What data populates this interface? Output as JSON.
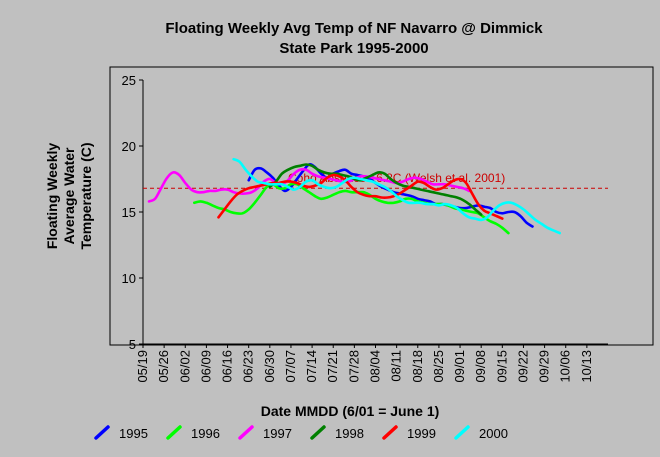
{
  "chart_data": {
    "type": "line",
    "title": [
      "Floating Weekly Avg Temp of NF Navarro @ Dimmick",
      "State Park 1995-2000"
    ],
    "xlabel": "Date MMDD (6/01 = June 1)",
    "ylabel": [
      "Floating Weekly",
      "Average Water",
      "Temperature (C)"
    ],
    "ylim": [
      5,
      25
    ],
    "yticks": [
      5,
      10,
      15,
      20,
      25
    ],
    "xticks": [
      "05/19",
      "05/26",
      "06/02",
      "06/09",
      "06/16",
      "06/23",
      "06/30",
      "07/07",
      "07/14",
      "07/21",
      "07/28",
      "08/04",
      "08/11",
      "08/18",
      "08/25",
      "09/01",
      "09/08",
      "09/15",
      "09/22",
      "09/29",
      "10/06",
      "10/13"
    ],
    "grid": false,
    "legend_position": "bottom",
    "reference_line": {
      "label": "Coho Absence 16.8C (Welsh et al. 2001)",
      "value": 16.8,
      "color": "#cc0000"
    },
    "series": [
      {
        "name": "1995",
        "color": "#0000ff",
        "x": [
          35,
          37,
          39,
          41,
          43,
          45,
          47,
          49,
          51,
          53,
          55,
          57,
          59,
          61,
          63,
          65,
          67,
          69,
          71,
          73,
          75,
          77,
          79,
          81,
          83,
          85,
          87,
          89,
          91,
          93,
          95,
          97,
          99,
          101,
          103,
          105,
          107,
          109,
          111,
          113,
          115,
          117,
          119,
          121,
          123,
          125,
          127,
          129
        ],
        "y": [
          17.4,
          18.2,
          18.3,
          18.0,
          17.6,
          17.0,
          16.6,
          16.9,
          17.5,
          18.1,
          18.6,
          18.4,
          17.9,
          17.6,
          17.9,
          18.1,
          18.2,
          17.9,
          17.8,
          17.7,
          17.5,
          17.2,
          16.9,
          16.7,
          16.5,
          16.4,
          16.3,
          16.2,
          16.0,
          15.9,
          15.8,
          15.6,
          15.6,
          15.5,
          15.4,
          15.3,
          15.3,
          15.4,
          15.5,
          15.4,
          15.3,
          15.0,
          14.9,
          15.0,
          15.0,
          14.7,
          14.2,
          13.9
        ]
      },
      {
        "name": "1996",
        "color": "#00ff00",
        "x": [
          17,
          19,
          21,
          23,
          25,
          27,
          29,
          31,
          33,
          35,
          37,
          39,
          41,
          43,
          45,
          47,
          49,
          51,
          53,
          55,
          57,
          59,
          61,
          63,
          65,
          67,
          69,
          71,
          73,
          75,
          77,
          79,
          81,
          83,
          85,
          87,
          89,
          91,
          93,
          95,
          97,
          99,
          101,
          103,
          105,
          107,
          109,
          111,
          113,
          115,
          117,
          119,
          121
        ],
        "y": [
          15.7,
          15.8,
          15.7,
          15.5,
          15.3,
          15.2,
          15.0,
          14.9,
          14.9,
          15.2,
          15.7,
          16.3,
          16.9,
          17.1,
          16.8,
          16.8,
          17.1,
          17.1,
          16.8,
          16.5,
          16.2,
          16.0,
          16.1,
          16.3,
          16.5,
          16.6,
          16.5,
          16.5,
          16.5,
          16.3,
          16.0,
          15.8,
          15.7,
          15.7,
          15.8,
          16.0,
          16.0,
          15.8,
          15.7,
          15.6,
          15.6,
          15.6,
          15.5,
          15.3,
          15.2,
          15.1,
          15.0,
          14.9,
          14.6,
          14.3,
          14.1,
          13.8,
          13.4
        ]
      },
      {
        "name": "1997",
        "color": "#ff00ff",
        "x": [
          2,
          4,
          6,
          8,
          10,
          12,
          14,
          16,
          18,
          20,
          22,
          24,
          26,
          28,
          30,
          32,
          34,
          36,
          38,
          40,
          42,
          44,
          46,
          48,
          50,
          52,
          54,
          56,
          58,
          60,
          62,
          64,
          66,
          68,
          70,
          72,
          74,
          76,
          78,
          80,
          82,
          84,
          86,
          88,
          90,
          92,
          94,
          96,
          98,
          100,
          102,
          104,
          106,
          108
        ],
        "y": [
          15.8,
          16.0,
          16.8,
          17.6,
          18.0,
          17.8,
          17.2,
          16.7,
          16.5,
          16.5,
          16.6,
          16.6,
          16.7,
          16.7,
          16.5,
          16.4,
          16.4,
          16.5,
          16.8,
          17.3,
          17.5,
          17.2,
          17.1,
          17.4,
          17.9,
          18.2,
          18.2,
          17.9,
          17.7,
          17.6,
          17.5,
          17.4,
          17.3,
          17.3,
          17.5,
          17.7,
          17.7,
          17.6,
          17.5,
          17.4,
          17.3,
          17.2,
          17.3,
          17.5,
          17.6,
          17.5,
          17.3,
          17.1,
          17.1,
          17.1,
          17.0,
          16.9,
          16.8,
          16.6
        ]
      },
      {
        "name": "1998",
        "color": "#008000",
        "x": [
          42,
          44,
          46,
          48,
          50,
          52,
          54,
          56,
          58,
          60,
          62,
          64,
          66,
          68,
          70,
          72,
          74,
          76,
          78,
          80,
          82,
          84,
          86,
          88,
          90,
          92,
          94,
          96,
          98,
          100,
          102,
          104,
          106,
          108,
          110,
          112
        ],
        "y": [
          16.9,
          17.3,
          17.9,
          18.2,
          18.4,
          18.5,
          18.6,
          18.5,
          18.2,
          18.0,
          17.9,
          17.9,
          17.8,
          17.7,
          17.5,
          17.4,
          17.6,
          17.8,
          18.0,
          17.9,
          17.5,
          17.2,
          17.0,
          16.9,
          16.8,
          16.7,
          16.6,
          16.5,
          16.4,
          16.3,
          16.2,
          16.1,
          15.9,
          15.6,
          15.2,
          14.8
        ]
      },
      {
        "name": "1999",
        "color": "#ff0000",
        "x": [
          25,
          27,
          29,
          31,
          33,
          35,
          37,
          39,
          41,
          43,
          45,
          47,
          49,
          51,
          53,
          55,
          57,
          59,
          61,
          63,
          65,
          67,
          69,
          71,
          73,
          75,
          77,
          79,
          81,
          83,
          85,
          87,
          89,
          91,
          93,
          95,
          97,
          99,
          101,
          103,
          105,
          107,
          109,
          111,
          113,
          115,
          117,
          119
        ],
        "y": [
          14.6,
          15.2,
          15.8,
          16.3,
          16.6,
          16.8,
          16.9,
          17.0,
          17.1,
          17.2,
          17.2,
          17.3,
          17.3,
          17.2,
          17.0,
          16.9,
          17.0,
          17.2,
          17.6,
          17.8,
          17.7,
          17.4,
          16.9,
          16.5,
          16.3,
          16.2,
          16.2,
          16.1,
          16.1,
          16.2,
          16.4,
          16.7,
          17.0,
          17.3,
          17.2,
          16.9,
          16.7,
          16.8,
          17.1,
          17.4,
          17.5,
          17.2,
          16.4,
          15.6,
          15.1,
          14.9,
          14.7,
          14.5
        ]
      },
      {
        "name": "2000",
        "color": "#00ffff",
        "x": [
          30,
          32,
          34,
          36,
          38,
          40,
          42,
          44,
          46,
          48,
          50,
          52,
          54,
          56,
          58,
          60,
          62,
          64,
          66,
          68,
          70,
          72,
          74,
          76,
          78,
          80,
          82,
          84,
          86,
          88,
          90,
          92,
          94,
          96,
          98,
          100,
          102,
          104,
          106,
          108,
          110,
          112,
          114,
          116,
          118,
          120,
          122,
          124,
          126,
          128,
          130,
          132,
          134,
          136,
          138
        ],
        "y": [
          19.0,
          18.8,
          18.2,
          17.7,
          17.3,
          17.2,
          17.1,
          17.1,
          17.1,
          16.9,
          16.7,
          16.9,
          17.3,
          17.4,
          17.1,
          16.9,
          16.8,
          16.9,
          17.2,
          17.5,
          17.6,
          17.5,
          17.4,
          17.3,
          17.1,
          16.9,
          16.6,
          16.2,
          15.9,
          15.7,
          15.7,
          15.7,
          15.6,
          15.6,
          15.5,
          15.6,
          15.5,
          15.3,
          14.9,
          14.6,
          14.5,
          14.4,
          14.6,
          15.1,
          15.5,
          15.7,
          15.7,
          15.5,
          15.2,
          14.8,
          14.4,
          14.1,
          13.8,
          13.6,
          13.4
        ]
      }
    ]
  }
}
